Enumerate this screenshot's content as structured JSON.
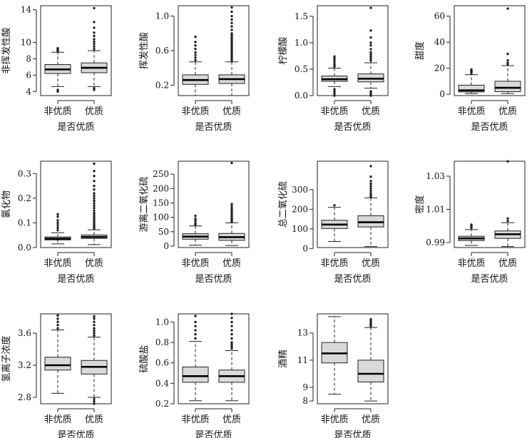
{
  "chart_data": [
    {
      "type": "boxplot",
      "ylabel": "非挥发性酸",
      "xlabel": "是否优质",
      "categories": [
        "非优质",
        "优质"
      ],
      "ylim": [
        3.5,
        14.5
      ],
      "yticks": [
        4,
        6,
        8,
        10,
        14
      ],
      "boxes": [
        {
          "whisker_low": 4.6,
          "q1": 6.2,
          "median": 6.7,
          "q3": 7.3,
          "whisker_high": 8.8,
          "outliers": [
            4.0,
            4.2,
            8.9,
            9.0,
            9.1,
            9.2,
            9.3
          ]
        },
        {
          "whisker_low": 4.6,
          "q1": 6.3,
          "median": 6.9,
          "q3": 7.5,
          "whisker_high": 9.0,
          "outliers": [
            4.2,
            4.4,
            9.2,
            9.5,
            9.8,
            10.1,
            10.4,
            10.8,
            11.2,
            11.8,
            12.5,
            14.2
          ]
        }
      ]
    },
    {
      "type": "boxplot",
      "ylabel": "挥发性酸",
      "xlabel": "是否优质",
      "categories": [
        "非优质",
        "优质"
      ],
      "ylim": [
        0.08,
        1.12
      ],
      "yticks": [
        0.2,
        0.6,
        1.0
      ],
      "boxes": [
        {
          "whisker_low": 0.08,
          "q1": 0.21,
          "median": 0.26,
          "q3": 0.32,
          "whisker_high": 0.47,
          "outliers": [
            0.49,
            0.52,
            0.55,
            0.58,
            0.62,
            0.66,
            0.7,
            0.76
          ]
        },
        {
          "whisker_low": 0.08,
          "q1": 0.22,
          "median": 0.27,
          "q3": 0.32,
          "whisker_high": 0.47,
          "outliers": [
            0.48,
            0.5,
            0.52,
            0.54,
            0.56,
            0.58,
            0.6,
            0.62,
            0.64,
            0.66,
            0.68,
            0.7,
            0.72,
            0.74,
            0.76,
            0.78,
            0.8,
            0.84,
            0.88,
            0.92,
            0.96,
            1.0,
            1.05,
            1.1
          ]
        }
      ]
    },
    {
      "type": "boxplot",
      "ylabel": "柠檬酸",
      "xlabel": "是否优质",
      "categories": [
        "非优质",
        "优质"
      ],
      "ylim": [
        0,
        1.7
      ],
      "yticks": [
        0.0,
        0.5,
        1.0,
        1.5
      ],
      "boxes": [
        {
          "whisker_low": 0.17,
          "q1": 0.27,
          "median": 0.31,
          "q3": 0.37,
          "whisker_high": 0.52,
          "outliers": [
            0.0,
            0.04,
            0.08,
            0.12,
            0.55,
            0.58,
            0.62,
            0.66,
            0.7,
            0.74
          ]
        },
        {
          "whisker_low": 0.14,
          "q1": 0.26,
          "median": 0.32,
          "q3": 0.41,
          "whisker_high": 0.62,
          "outliers": [
            0.0,
            0.02,
            0.05,
            0.08,
            0.66,
            0.7,
            0.74,
            0.78,
            0.82,
            0.88,
            0.95,
            1.0,
            1.1,
            1.23,
            1.66
          ]
        }
      ]
    },
    {
      "type": "boxplot",
      "ylabel": "甜度",
      "xlabel": "是否优质",
      "categories": [
        "非优质",
        "优质"
      ],
      "ylim": [
        -1,
        68
      ],
      "yticks": [
        0,
        20,
        40,
        60
      ],
      "boxes": [
        {
          "whisker_low": 0.6,
          "q1": 1.8,
          "median": 3.0,
          "q3": 7.0,
          "whisker_high": 15.0,
          "outliers": [
            16.0,
            17.0,
            17.5,
            18.0,
            18.5,
            19.0
          ]
        },
        {
          "whisker_low": 0.6,
          "q1": 2.0,
          "median": 5.0,
          "q3": 10.0,
          "whisker_high": 22.0,
          "outliers": [
            23.0,
            24.0,
            26.0,
            31.0,
            65.8
          ]
        }
      ]
    },
    {
      "type": "boxplot",
      "ylabel": "氯化物",
      "xlabel": "是否优质",
      "categories": [
        "非优质",
        "优质"
      ],
      "ylim": [
        0,
        0.35
      ],
      "yticks": [
        0.0,
        0.1,
        0.2,
        0.3
      ],
      "boxes": [
        {
          "whisker_low": 0.015,
          "q1": 0.031,
          "median": 0.036,
          "q3": 0.043,
          "whisker_high": 0.06,
          "outliers": [
            0.07,
            0.08,
            0.09,
            0.1,
            0.11,
            0.125,
            0.135
          ]
        },
        {
          "whisker_low": 0.012,
          "q1": 0.037,
          "median": 0.043,
          "q3": 0.051,
          "whisker_high": 0.072,
          "outliers": [
            0.076,
            0.082,
            0.088,
            0.094,
            0.1,
            0.108,
            0.116,
            0.124,
            0.132,
            0.14,
            0.15,
            0.16,
            0.17,
            0.18,
            0.19,
            0.2,
            0.21,
            0.22,
            0.235,
            0.25,
            0.27,
            0.29,
            0.31,
            0.34
          ]
        }
      ]
    },
    {
      "type": "boxplot",
      "ylabel": "游离二氧化硫",
      "xlabel": "是否优质",
      "categories": [
        "非优质",
        "优质"
      ],
      "ylim": [
        -5,
        295
      ],
      "yticks": [
        0,
        50,
        100,
        150,
        200,
        250
      ],
      "boxes": [
        {
          "whisker_low": 3,
          "q1": 24,
          "median": 33,
          "q3": 43,
          "whisker_high": 70,
          "outliers": [
            74,
            80,
            88,
            95,
            105
          ]
        },
        {
          "whisker_low": 2,
          "q1": 20,
          "median": 31,
          "q3": 44,
          "whisker_high": 81,
          "outliers": [
            84,
            88,
            92,
            96,
            100,
            106,
            112,
            118,
            125,
            131,
            138,
            146,
            289
          ]
        }
      ]
    },
    {
      "type": "boxplot",
      "ylabel": "总二氧化硫",
      "xlabel": "是否优质",
      "categories": [
        "非优质",
        "优质"
      ],
      "ylim": [
        5,
        445
      ],
      "yticks": [
        0,
        100,
        200,
        300
      ],
      "boxes": [
        {
          "whisker_low": 36,
          "q1": 102,
          "median": 122,
          "q3": 144,
          "whisker_high": 210,
          "outliers": [
            220
          ]
        },
        {
          "whisker_low": 10,
          "q1": 110,
          "median": 134,
          "q3": 167,
          "whisker_high": 258,
          "outliers": [
            264,
            272,
            282,
            294,
            306,
            318,
            330,
            344,
            366,
            420
          ]
        }
      ]
    },
    {
      "type": "boxplot",
      "ylabel": "密度",
      "xlabel": "是否优质",
      "categories": [
        "非优质",
        "优质"
      ],
      "ylim": [
        0.987,
        1.039
      ],
      "yticks": [
        0.99,
        1.01,
        1.03
      ],
      "boxes": [
        {
          "whisker_low": 0.9883,
          "q1": 0.9912,
          "median": 0.9925,
          "q3": 0.9938,
          "whisker_high": 0.9978,
          "outliers": [
            0.9988,
            0.9995,
            1.0002,
            1.0008
          ]
        },
        {
          "whisker_low": 0.9876,
          "q1": 0.9925,
          "median": 0.995,
          "q3": 0.997,
          "whisker_high": 1.002,
          "outliers": [
            1.003,
            1.0045,
            1.0389
          ]
        }
      ]
    },
    {
      "type": "boxplot",
      "ylabel": "氢离子浓度",
      "xlabel": "是否优质",
      "categories": [
        "非优质",
        "优质"
      ],
      "ylim": [
        2.72,
        3.84
      ],
      "yticks": [
        2.8,
        3.2,
        3.6
      ],
      "boxes": [
        {
          "whisker_low": 2.85,
          "q1": 3.14,
          "median": 3.2,
          "q3": 3.3,
          "whisker_high": 3.64,
          "outliers": [
            3.66,
            3.7,
            3.74,
            3.78,
            3.82
          ]
        },
        {
          "whisker_low": 2.8,
          "q1": 3.09,
          "median": 3.18,
          "q3": 3.26,
          "whisker_high": 3.55,
          "outliers": [
            2.72,
            2.75,
            2.78,
            3.57,
            3.6,
            3.63,
            3.66,
            3.7,
            3.74,
            3.78,
            3.81
          ]
        }
      ]
    },
    {
      "type": "boxplot",
      "ylabel": "硫酸盐",
      "xlabel": "是否优质",
      "categories": [
        "非优质",
        "优质"
      ],
      "ylim": [
        0.2,
        1.08
      ],
      "yticks": [
        0.2,
        0.4,
        0.6,
        0.8,
        1.0
      ],
      "boxes": [
        {
          "whisker_low": 0.23,
          "q1": 0.41,
          "median": 0.47,
          "q3": 0.56,
          "whisker_high": 0.81,
          "outliers": [
            0.84,
            0.88,
            0.92,
            0.96,
            1.0,
            1.06
          ]
        },
        {
          "whisker_low": 0.23,
          "q1": 0.41,
          "median": 0.47,
          "q3": 0.53,
          "whisker_high": 0.72,
          "outliers": [
            0.74,
            0.76,
            0.78,
            0.8,
            0.84,
            0.88,
            0.92,
            0.96,
            1.0,
            1.04,
            1.08
          ]
        }
      ]
    },
    {
      "type": "boxplot",
      "ylabel": "酒精",
      "xlabel": "是否优质",
      "categories": [
        "非优质",
        "优质"
      ],
      "ylim": [
        7.8,
        14.4
      ],
      "yticks": [
        8,
        9,
        11,
        13
      ],
      "boxes": [
        {
          "whisker_low": 8.5,
          "q1": 10.8,
          "median": 11.5,
          "q3": 12.3,
          "whisker_high": 14.2,
          "outliers": []
        },
        {
          "whisker_low": 8.0,
          "q1": 9.4,
          "median": 10.0,
          "q3": 11.0,
          "whisker_high": 13.4,
          "outliers": [
            13.5,
            13.6,
            13.7,
            13.8,
            13.9,
            14.0
          ]
        }
      ]
    }
  ]
}
